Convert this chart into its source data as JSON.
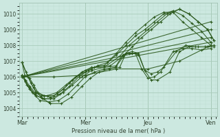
{
  "xlabel": "Pression niveau de la mer( hPa )",
  "bg_color": "#cce8e0",
  "grid_color_major": "#aaccbb",
  "grid_color_minor": "#bbddd0",
  "line_color": "#2d5a1e",
  "ylim": [
    1003.5,
    1010.7
  ],
  "yticks": [
    1004,
    1005,
    1006,
    1007,
    1008,
    1009,
    1010
  ],
  "day_labels": [
    "Mar",
    "Mer",
    "Jeu",
    "Ven"
  ],
  "day_ticks": [
    0,
    1,
    2,
    3
  ],
  "xlim": [
    -0.05,
    3.1
  ],
  "series": [
    {
      "x": [
        0.0,
        0.04,
        0.08,
        0.12,
        0.18,
        0.25,
        0.35,
        0.45,
        0.55,
        0.65,
        0.75,
        0.9,
        1.0,
        1.1,
        1.2,
        1.35,
        1.5,
        1.65,
        1.8,
        1.95,
        2.1,
        2.25,
        2.4,
        2.55,
        2.7,
        2.85,
        3.0
      ],
      "y": [
        1006.9,
        1006.1,
        1006.0,
        1005.9,
        1005.5,
        1005.0,
        1004.8,
        1004.7,
        1004.9,
        1005.2,
        1005.6,
        1006.1,
        1006.3,
        1006.5,
        1006.7,
        1006.9,
        1007.5,
        1008.2,
        1008.8,
        1009.3,
        1009.8,
        1010.1,
        1010.1,
        1009.5,
        1009.0,
        1008.5,
        1008.0
      ]
    },
    {
      "x": [
        0.0,
        0.05,
        0.12,
        0.2,
        0.3,
        0.4,
        0.55,
        0.7,
        0.85,
        1.0,
        1.15,
        1.3,
        1.5,
        1.65,
        1.8,
        1.95,
        2.1,
        2.25,
        2.4,
        2.55,
        2.7,
        2.85,
        3.0
      ],
      "y": [
        1006.1,
        1005.8,
        1005.4,
        1005.0,
        1004.8,
        1004.8,
        1005.0,
        1005.5,
        1006.0,
        1006.4,
        1006.6,
        1006.7,
        1007.4,
        1008.0,
        1008.6,
        1009.0,
        1009.5,
        1010.0,
        1010.2,
        1009.9,
        1009.4,
        1008.9,
        1008.2
      ]
    },
    {
      "x": [
        0.0,
        0.05,
        0.12,
        0.2,
        0.32,
        0.45,
        0.6,
        0.75,
        0.9,
        1.05,
        1.2,
        1.4,
        1.6,
        1.75,
        1.9,
        2.05,
        2.2,
        2.35,
        2.5,
        2.65,
        2.8,
        2.95,
        3.05
      ],
      "y": [
        1006.1,
        1005.7,
        1005.3,
        1004.9,
        1004.6,
        1004.6,
        1004.9,
        1005.4,
        1006.0,
        1006.4,
        1006.7,
        1006.7,
        1007.3,
        1007.9,
        1008.5,
        1009.0,
        1009.5,
        1010.0,
        1010.3,
        1010.0,
        1009.5,
        1009.0,
        1008.3
      ]
    },
    {
      "x": [
        0.0,
        0.06,
        0.14,
        0.22,
        0.35,
        0.5,
        0.65,
        0.8,
        0.95,
        1.1,
        1.3,
        1.55,
        1.7,
        1.85,
        2.0,
        2.15,
        2.3,
        2.5,
        2.65,
        2.8,
        2.95,
        3.05
      ],
      "y": [
        1006.9,
        1006.3,
        1005.6,
        1005.0,
        1004.8,
        1004.8,
        1005.2,
        1005.8,
        1006.3,
        1006.6,
        1006.6,
        1007.3,
        1008.0,
        1008.5,
        1009.0,
        1009.5,
        1010.0,
        1010.3,
        1010.0,
        1009.5,
        1009.0,
        1008.3
      ]
    },
    {
      "x": [
        0.0,
        0.05,
        0.12,
        0.22,
        0.35,
        0.5,
        0.65,
        0.8,
        0.95,
        1.1,
        1.3,
        1.5,
        1.65,
        1.75,
        1.85,
        1.95,
        2.05,
        2.15,
        2.25,
        2.45,
        2.6,
        2.75,
        2.9,
        3.05
      ],
      "y": [
        1006.1,
        1005.7,
        1005.2,
        1004.8,
        1004.6,
        1004.6,
        1005.0,
        1005.5,
        1006.0,
        1006.4,
        1006.6,
        1006.7,
        1007.5,
        1007.6,
        1007.5,
        1006.4,
        1006.2,
        1006.3,
        1006.6,
        1007.6,
        1008.0,
        1007.9,
        1007.9,
        1008.0
      ]
    },
    {
      "x": [
        0.0,
        0.07,
        0.16,
        0.28,
        0.42,
        0.58,
        0.73,
        0.88,
        1.0,
        1.15,
        1.3,
        1.48,
        1.6,
        1.7,
        1.8,
        1.9,
        2.0,
        2.1,
        2.2,
        2.4,
        2.55,
        2.7,
        2.85,
        3.0
      ],
      "y": [
        1006.1,
        1005.5,
        1005.0,
        1004.5,
        1004.4,
        1004.5,
        1004.9,
        1005.5,
        1006.0,
        1006.3,
        1006.5,
        1006.6,
        1007.4,
        1007.5,
        1007.5,
        1006.5,
        1005.9,
        1006.0,
        1006.3,
        1007.6,
        1007.8,
        1007.8,
        1007.7,
        1007.8
      ]
    },
    {
      "x": [
        0.0,
        0.08,
        0.18,
        0.3,
        0.45,
        0.62,
        0.78,
        0.95,
        1.08,
        1.22,
        1.38,
        1.55,
        1.65,
        1.75,
        1.85,
        1.95,
        2.05,
        2.15,
        2.35,
        2.5,
        2.65,
        2.8,
        2.95,
        3.05
      ],
      "y": [
        1006.9,
        1006.1,
        1005.3,
        1004.7,
        1004.3,
        1004.3,
        1004.7,
        1005.4,
        1005.9,
        1006.3,
        1006.5,
        1006.6,
        1007.5,
        1007.5,
        1007.4,
        1006.4,
        1005.8,
        1005.8,
        1006.3,
        1007.6,
        1007.9,
        1007.9,
        1007.9,
        1007.9
      ]
    },
    {
      "x": [
        0.0,
        0.03,
        0.5,
        1.0,
        1.5,
        2.0,
        2.5,
        3.0
      ],
      "y": [
        1006.0,
        1006.0,
        1006.0,
        1006.1,
        1006.5,
        1006.5,
        1007.0,
        1008.0
      ]
    },
    {
      "x": [
        0.0,
        3.0
      ],
      "y": [
        1006.0,
        1009.5
      ]
    },
    {
      "x": [
        0.0,
        3.0
      ],
      "y": [
        1006.0,
        1009.0
      ]
    },
    {
      "x": [
        0.0,
        3.0
      ],
      "y": [
        1006.0,
        1008.5
      ]
    },
    {
      "x": [
        0.0,
        3.0
      ],
      "y": [
        1006.0,
        1008.2
      ]
    }
  ]
}
